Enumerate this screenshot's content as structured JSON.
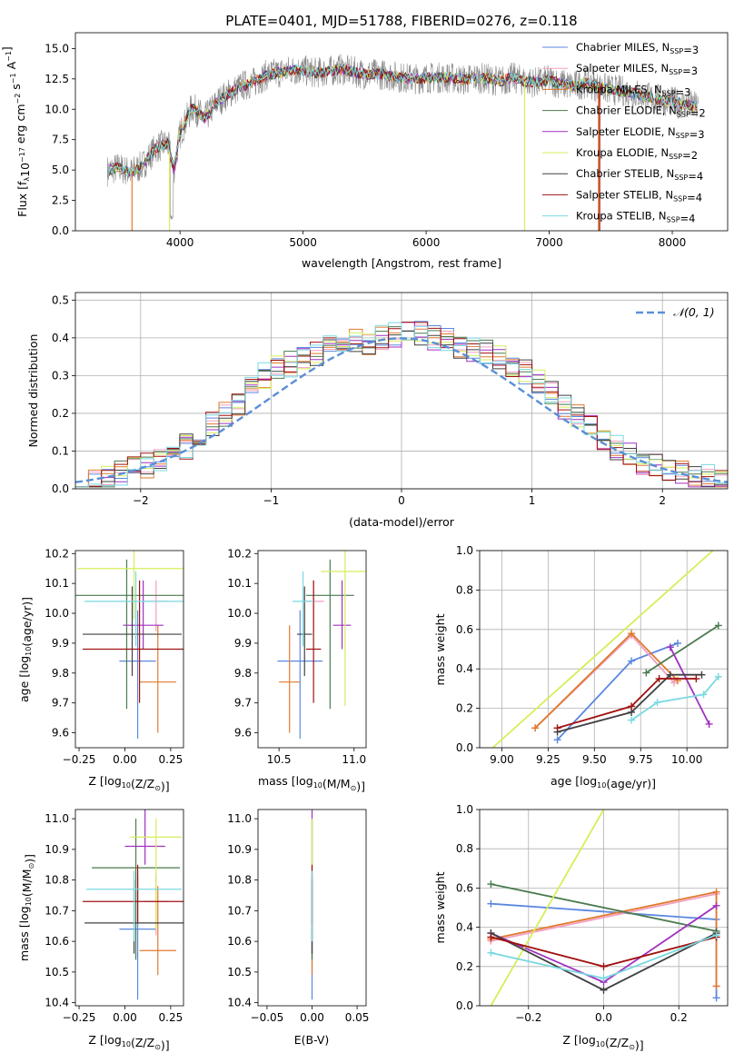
{
  "figure": {
    "title": "PLATE=0401, MJD=51788, FIBERID=0276, z=0.118"
  },
  "colors": {
    "Chabrier MILES": "#5b87e0",
    "Salpeter MILES": "#f2a0c2",
    "Kroupa MILES": "#e07a2e",
    "Chabrier ELODIE": "#4a7a4e",
    "Salpeter ELODIE": "#a030c0",
    "Kroupa ELODIE": "#d6ee5a",
    "Chabrier STELIB": "#404040",
    "Salpeter STELIB": "#a01010",
    "Kroupa STELIB": "#7ad8e0"
  },
  "chart_data": [
    {
      "id": "spectrum",
      "type": "line",
      "title": "PLATE=0401, MJD=51788, FIBERID=0276, z=0.118",
      "xlabel": "wavelength [Angstrom, rest frame]",
      "ylabel": "Flux [fλ10⁻¹⁷ erg cm⁻² s⁻¹ A⁻¹]",
      "xlim": [
        3150,
        8450
      ],
      "ylim": [
        0,
        16.3
      ],
      "xticks": [
        4000,
        5000,
        6000,
        7000,
        8000
      ],
      "yticks": [
        0.0,
        2.5,
        5.0,
        7.5,
        10.0,
        12.5,
        15.0
      ],
      "grid": false,
      "legend": "top-right",
      "data_continuum": [
        [
          3400,
          4.9
        ],
        [
          3500,
          5.2
        ],
        [
          3600,
          4.8
        ],
        [
          3700,
          5.4
        ],
        [
          3800,
          6.8
        ],
        [
          3900,
          7.2
        ],
        [
          3950,
          5.0
        ],
        [
          4000,
          8.0
        ],
        [
          4100,
          10.2
        ],
        [
          4200,
          9.2
        ],
        [
          4300,
          10.6
        ],
        [
          4400,
          11.3
        ],
        [
          4500,
          11.9
        ],
        [
          4600,
          12.2
        ],
        [
          4700,
          12.8
        ],
        [
          4800,
          13.0
        ],
        [
          4900,
          13.2
        ],
        [
          5000,
          13.2
        ],
        [
          5100,
          13.0
        ],
        [
          5200,
          13.1
        ],
        [
          5300,
          13.3
        ],
        [
          5400,
          13.1
        ],
        [
          5500,
          12.9
        ],
        [
          5600,
          12.9
        ],
        [
          5700,
          12.8
        ],
        [
          5800,
          12.6
        ],
        [
          5900,
          12.5
        ],
        [
          6000,
          12.6
        ],
        [
          6100,
          12.6
        ],
        [
          6200,
          12.6
        ],
        [
          6300,
          12.4
        ],
        [
          6400,
          12.6
        ],
        [
          6500,
          12.5
        ],
        [
          6600,
          12.3
        ],
        [
          6700,
          12.6
        ],
        [
          6800,
          12.3
        ],
        [
          6900,
          12.2
        ],
        [
          7000,
          12.4
        ],
        [
          7100,
          12.1
        ],
        [
          7200,
          11.9
        ],
        [
          7300,
          12.2
        ],
        [
          7400,
          11.8
        ],
        [
          7500,
          11.6
        ],
        [
          7600,
          11.5
        ],
        [
          7700,
          11.3
        ],
        [
          7800,
          11.0
        ],
        [
          7900,
          10.8
        ],
        [
          8000,
          10.6
        ],
        [
          8100,
          10.4
        ],
        [
          8200,
          10.2
        ]
      ],
      "series": [
        {
          "name": "Chabrier MILES, Nₛₛₚ=3",
          "label_main": "Chabrier MILES, N",
          "label_sub": "SSP",
          "label_end": "=3"
        },
        {
          "name": "Salpeter MILES, Nₛₛₚ=3",
          "label_main": "Salpeter MILES, N",
          "label_sub": "SSP",
          "label_end": "=3"
        },
        {
          "name": "Kroupa MILES, Nₛₛₚ=3",
          "label_main": "Kroupa MILES, N",
          "label_sub": "SSP",
          "label_end": "=3"
        },
        {
          "name": "Chabrier ELODIE, Nₛₛₚ=2",
          "label_main": "Chabrier ELODIE, N",
          "label_sub": "SSP",
          "label_end": "=2"
        },
        {
          "name": "Salpeter ELODIE, Nₛₛₚ=3",
          "label_main": "Salpeter ELODIE, N",
          "label_sub": "SSP",
          "label_end": "=3"
        },
        {
          "name": "Kroupa ELODIE, Nₛₛₚ=2",
          "label_main": "Kroupa ELODIE, N",
          "label_sub": "SSP",
          "label_end": "=2"
        },
        {
          "name": "Chabrier STELIB, Nₛₛₚ=4",
          "label_main": "Chabrier STELIB, N",
          "label_sub": "SSP",
          "label_end": "=4"
        },
        {
          "name": "Salpeter STELIB, Nₛₛₚ=4",
          "label_main": "Salpeter STELIB, N",
          "label_sub": "SSP",
          "label_end": "=4"
        },
        {
          "name": "Kroupa STELIB, Nₛₛₚ=4",
          "label_main": "Kroupa STELIB, N",
          "label_sub": "SSP",
          "label_end": "=4"
        }
      ]
    },
    {
      "id": "residuals",
      "type": "histogram",
      "xlabel": "(data-model)/error",
      "ylabel": "Normed distribution",
      "xlim": [
        -2.5,
        2.5
      ],
      "ylim": [
        0,
        0.52
      ],
      "xticks": [
        -2,
        -1,
        0,
        1,
        2
      ],
      "yticks": [
        0.0,
        0.1,
        0.2,
        0.3,
        0.4,
        0.5
      ],
      "grid": true,
      "legend": "top-right",
      "reference_curve": {
        "name": "𝒩(0, 1)",
        "mean": 0,
        "sigma": 1,
        "style": "dashed"
      },
      "bin_width": 0.1,
      "envelope": [
        0.02,
        0.02,
        0.03,
        0.04,
        0.05,
        0.06,
        0.07,
        0.09,
        0.11,
        0.14,
        0.17,
        0.2,
        0.23,
        0.27,
        0.3,
        0.32,
        0.33,
        0.35,
        0.36,
        0.37,
        0.38,
        0.39,
        0.39,
        0.4,
        0.41,
        0.42,
        0.41,
        0.4,
        0.39,
        0.38,
        0.37,
        0.36,
        0.35,
        0.33,
        0.31,
        0.28,
        0.25,
        0.22,
        0.19,
        0.16,
        0.13,
        0.11,
        0.09,
        0.07,
        0.06,
        0.05,
        0.04,
        0.03,
        0.03,
        0.02
      ]
    },
    {
      "id": "age-vs-Z",
      "type": "errorbar",
      "xlabel": "Z [log₁₀(Z/Z⊙)]",
      "ylabel": "age  [log₁₀(age/yr)]",
      "xlim": [
        -0.27,
        0.32
      ],
      "ylim": [
        9.55,
        10.21
      ],
      "xticks": [
        -0.25,
        0.0,
        0.25
      ],
      "yticks": [
        9.6,
        9.7,
        9.8,
        9.9,
        10.0,
        10.1,
        10.2
      ],
      "points": [
        {
          "x": 0.07,
          "xerr": 0.1,
          "y": 9.84,
          "yerr": [
            0.26,
            0.17
          ]
        },
        {
          "x": 0.17,
          "xerr": 0.07,
          "y": 10.04,
          "yerr": [
            0.1,
            0.07
          ]
        },
        {
          "x": 0.18,
          "xerr": 0.1,
          "y": 9.77,
          "yerr": [
            0.17,
            0.19
          ]
        },
        {
          "x": 0.01,
          "xerr": 0.31,
          "y": 10.06,
          "yerr": [
            0.38,
            0.12
          ]
        },
        {
          "x": 0.1,
          "xerr": 0.11,
          "y": 9.96,
          "yerr": [
            0.08,
            0.15
          ]
        },
        {
          "x": 0.05,
          "xerr": 0.31,
          "y": 10.15,
          "yerr": [
            0.17,
            0.14
          ]
        },
        {
          "x": 0.04,
          "xerr": 0.27,
          "y": 9.93,
          "yerr": [
            0.14,
            0.16
          ]
        },
        {
          "x": 0.08,
          "xerr": 0.31,
          "y": 9.88,
          "yerr": [
            0.18,
            0.23
          ]
        },
        {
          "x": 0.06,
          "xerr": 0.28,
          "y": 10.04,
          "yerr": [
            0.15,
            0.1
          ]
        }
      ]
    },
    {
      "id": "age-vs-mass",
      "type": "errorbar",
      "xlabel": "mass [log₁₀(M/M⊙)]",
      "ylabel": "",
      "xlim": [
        10.36,
        11.08
      ],
      "ylim": [
        9.55,
        10.21
      ],
      "xticks": [
        10.5,
        11.0
      ],
      "yticks": [
        9.6,
        9.7,
        9.8,
        9.9,
        10.0,
        10.1,
        10.2
      ],
      "points": [
        {
          "x": 10.64,
          "xerr": 0.15,
          "y": 9.84,
          "yerr": [
            0.26,
            0.17
          ]
        },
        {
          "x": 10.73,
          "xerr": 0.07,
          "y": 10.04,
          "yerr": [
            0.1,
            0.07
          ]
        },
        {
          "x": 10.57,
          "xerr": 0.07,
          "y": 9.77,
          "yerr": [
            0.17,
            0.19
          ]
        },
        {
          "x": 10.84,
          "xerr": 0.16,
          "y": 10.06,
          "yerr": [
            0.38,
            0.12
          ]
        },
        {
          "x": 10.92,
          "xerr": 0.06,
          "y": 9.96,
          "yerr": [
            0.08,
            0.15
          ]
        },
        {
          "x": 10.94,
          "xerr": 0.16,
          "y": 10.14,
          "yerr": [
            0.45,
            0.14
          ]
        },
        {
          "x": 10.67,
          "xerr": 0.05,
          "y": 9.93,
          "yerr": [
            0.14,
            0.16
          ]
        },
        {
          "x": 10.73,
          "xerr": 0.05,
          "y": 9.88,
          "yerr": [
            0.18,
            0.23
          ]
        },
        {
          "x": 10.66,
          "xerr": 0.07,
          "y": 10.04,
          "yerr": [
            0.15,
            0.1
          ]
        }
      ]
    },
    {
      "id": "weight-vs-age",
      "type": "line",
      "xlabel": "age  [log₁₀(age/yr)]",
      "ylabel": "mass weight",
      "xlim": [
        8.88,
        10.22
      ],
      "ylim": [
        0,
        1.0
      ],
      "xticks": [
        9.0,
        9.25,
        9.5,
        9.75,
        10.0
      ],
      "yticks": [
        0.0,
        0.2,
        0.4,
        0.6,
        0.8,
        1.0
      ],
      "grid": true,
      "series": [
        {
          "x": [
            9.3,
            9.7,
            9.95
          ],
          "y": [
            0.04,
            0.44,
            0.53
          ]
        },
        {
          "x": [
            9.18,
            9.7,
            9.93
          ],
          "y": [
            0.1,
            0.57,
            0.33
          ]
        },
        {
          "x": [
            9.18,
            9.7,
            9.95
          ],
          "y": [
            0.1,
            0.58,
            0.34
          ]
        },
        {
          "x": [
            9.78,
            10.17
          ],
          "y": [
            0.38,
            0.62
          ]
        },
        {
          "x": [
            9.91,
            10.12
          ],
          "y": [
            0.51,
            0.12
          ]
        },
        {
          "x": [
            8.95,
            10.14
          ],
          "y": [
            0.0,
            1.0
          ]
        },
        {
          "x": [
            9.3,
            9.7,
            9.91,
            10.08
          ],
          "y": [
            0.08,
            0.18,
            0.37,
            0.37
          ]
        },
        {
          "x": [
            9.3,
            9.7,
            9.85,
            10.05
          ],
          "y": [
            0.1,
            0.21,
            0.35,
            0.35
          ]
        },
        {
          "x": [
            9.7,
            9.84,
            10.09,
            10.17
          ],
          "y": [
            0.14,
            0.23,
            0.27,
            0.36
          ]
        }
      ]
    },
    {
      "id": "mass-vs-Z",
      "type": "errorbar",
      "xlabel": "Z [log₁₀(Z/Z⊙)]",
      "ylabel": "mass [log₁₀(M/M⊙)]",
      "xlim": [
        -0.27,
        0.32
      ],
      "ylim": [
        10.39,
        11.03
      ],
      "xticks": [
        -0.25,
        0.0,
        0.25
      ],
      "yticks": [
        10.4,
        10.5,
        10.6,
        10.7,
        10.8,
        10.9,
        11.0
      ],
      "points": [
        {
          "x": 0.07,
          "xerr": 0.1,
          "y": 10.64,
          "yerr": [
            0.23,
            0.17
          ]
        },
        {
          "x": 0.17,
          "xerr": 0.06,
          "y": 10.73,
          "yerr": [
            0.11,
            0.09
          ]
        },
        {
          "x": 0.18,
          "xerr": 0.1,
          "y": 10.57,
          "yerr": [
            0.08,
            0.21
          ]
        },
        {
          "x": 0.06,
          "xerr": 0.24,
          "y": 10.84,
          "yerr": [
            0.3,
            0.16
          ]
        },
        {
          "x": 0.11,
          "xerr": 0.11,
          "y": 10.91,
          "yerr": [
            0.06,
            0.15
          ]
        },
        {
          "x": 0.17,
          "xerr": 0.14,
          "y": 10.94,
          "yerr": [
            0.3,
            0.06
          ]
        },
        {
          "x": 0.05,
          "xerr": 0.27,
          "y": 10.66,
          "yerr": [
            0.1,
            0.14
          ]
        },
        {
          "x": 0.07,
          "xerr": 0.3,
          "y": 10.73,
          "yerr": [
            0.07,
            0.12
          ]
        },
        {
          "x": 0.05,
          "xerr": 0.26,
          "y": 10.77,
          "yerr": [
            0.17,
            0.06
          ]
        }
      ]
    },
    {
      "id": "mass-vs-EBV",
      "type": "errorbar",
      "xlabel": "E(B-V)",
      "ylabel": "",
      "xlim": [
        -0.06,
        0.06
      ],
      "ylim": [
        10.39,
        11.03
      ],
      "xticks": [
        -0.05,
        0.0,
        0.05
      ],
      "yticks": [
        10.4,
        10.5,
        10.6,
        10.7,
        10.8,
        10.9,
        11.0
      ],
      "points": [
        {
          "x": 0,
          "xerr": 0,
          "y": 10.64,
          "yerr": [
            0.23,
            0.17
          ]
        },
        {
          "x": 0,
          "xerr": 0,
          "y": 10.73,
          "yerr": [
            0.11,
            0.09
          ]
        },
        {
          "x": 0,
          "xerr": 0,
          "y": 10.57,
          "yerr": [
            0.08,
            0.21
          ]
        },
        {
          "x": 0,
          "xerr": 0,
          "y": 10.84,
          "yerr": [
            0.3,
            0.16
          ]
        },
        {
          "x": 0,
          "xerr": 0,
          "y": 10.91,
          "yerr": [
            0.06,
            0.15
          ]
        },
        {
          "x": 0,
          "xerr": 0,
          "y": 10.94,
          "yerr": [
            0.3,
            0.06
          ]
        },
        {
          "x": 0,
          "xerr": 0,
          "y": 10.66,
          "yerr": [
            0.1,
            0.14
          ]
        },
        {
          "x": 0,
          "xerr": 0,
          "y": 10.73,
          "yerr": [
            0.07,
            0.12
          ]
        },
        {
          "x": 0,
          "xerr": 0,
          "y": 10.77,
          "yerr": [
            0.17,
            0.06
          ]
        }
      ]
    },
    {
      "id": "weight-vs-Z",
      "type": "line",
      "xlabel": "Z [log₁₀(Z/Z⊙)]",
      "ylabel": "mass weight",
      "xlim": [
        -0.33,
        0.33
      ],
      "ylim": [
        0,
        1.0
      ],
      "xticks": [
        -0.2,
        0.0,
        0.2
      ],
      "yticks": [
        0.0,
        0.2,
        0.4,
        0.6,
        0.8,
        1.0
      ],
      "grid": true,
      "series": [
        {
          "x": [
            -0.3,
            0.3,
            0.3
          ],
          "y": [
            0.52,
            0.44,
            0.04
          ]
        },
        {
          "x": [
            -0.3,
            0.3,
            0.3
          ],
          "y": [
            0.33,
            0.57,
            0.1
          ]
        },
        {
          "x": [
            -0.3,
            0.3,
            0.3
          ],
          "y": [
            0.34,
            0.58,
            0.1
          ]
        },
        {
          "x": [
            -0.3,
            0.3
          ],
          "y": [
            0.62,
            0.38
          ]
        },
        {
          "x": [
            -0.3,
            0.0,
            0.3
          ],
          "y": [
            0.37,
            0.12,
            0.51
          ]
        },
        {
          "x": [
            -0.3,
            0.0
          ],
          "y": [
            0.0,
            1.0
          ]
        },
        {
          "x": [
            -0.3,
            0.0,
            0.3
          ],
          "y": [
            0.37,
            0.08,
            0.37
          ]
        },
        {
          "x": [
            -0.3,
            0.0,
            0.3
          ],
          "y": [
            0.35,
            0.2,
            0.35
          ]
        },
        {
          "x": [
            -0.3,
            0.0,
            0.3
          ],
          "y": [
            0.27,
            0.14,
            0.36
          ]
        }
      ]
    }
  ]
}
